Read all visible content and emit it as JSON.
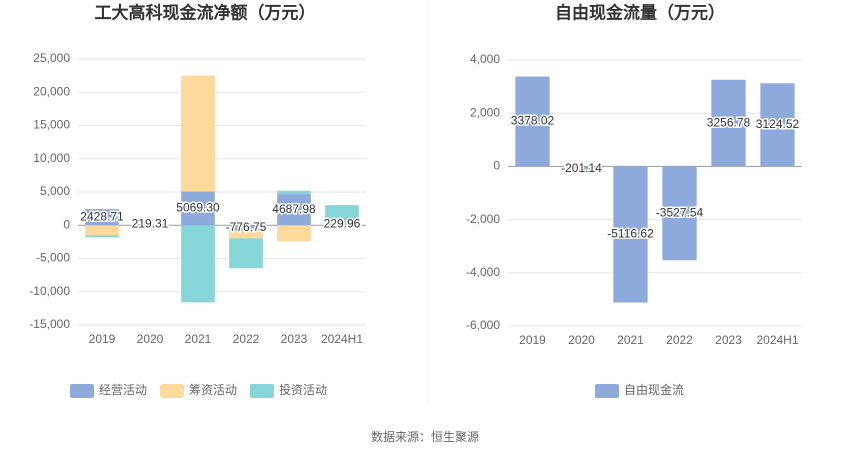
{
  "chart_data": [
    {
      "type": "bar",
      "stacked": true,
      "title": "工大高科现金流净额（万元）",
      "categories": [
        "2019",
        "2020",
        "2021",
        "2022",
        "2023",
        "2024H1"
      ],
      "series": [
        {
          "name": "经营活动",
          "color": "#8eaadc",
          "values": [
            2428.71,
            219.31,
            5069.3,
            -776.75,
            4687.98,
            229.96
          ],
          "value_labels": [
            "2428.71",
            "219.31",
            "5069.30",
            "-776.75",
            "4687.98",
            "229.96"
          ]
        },
        {
          "name": "筹资活动",
          "color": "#fdd99b",
          "values": [
            -1500,
            0,
            17450,
            -1200,
            -2400,
            0
          ]
        },
        {
          "name": "投资活动",
          "color": "#86d5d8",
          "values": [
            -300,
            0,
            -11600,
            -4500,
            500,
            2800
          ]
        }
      ],
      "ylim": [
        -15000,
        25000
      ],
      "yticks": [
        {
          "value": -15000,
          "label": "-15,000"
        },
        {
          "value": -10000,
          "label": "-10,000"
        },
        {
          "value": -5000,
          "label": "-5,000"
        },
        0,
        {
          "value": 5000,
          "label": "5,000"
        },
        {
          "value": 10000,
          "label": "10,000"
        },
        {
          "value": 15000,
          "label": "15,000"
        },
        {
          "value": 20000,
          "label": "20,000"
        },
        {
          "value": 25000,
          "label": "25,000"
        }
      ],
      "grid": true,
      "legend": "bottom"
    },
    {
      "type": "bar",
      "title": "自由现金流量（万元）",
      "categories": [
        "2019",
        "2020",
        "2021",
        "2022",
        "2023",
        "2024H1"
      ],
      "series": [
        {
          "name": "自由现金流",
          "color": "#8eaadc",
          "values": [
            3378.02,
            -201.14,
            -5116.62,
            -3527.54,
            3256.78,
            3124.52
          ],
          "value_labels": [
            "3378.02",
            "-201.14",
            "-5116.62",
            "-3527.54",
            "3256.78",
            "3124.52"
          ]
        }
      ],
      "ylim": [
        -6000,
        4000
      ],
      "yticks": [
        {
          "value": -6000,
          "label": "-6,000"
        },
        {
          "value": -4000,
          "label": "-4,000"
        },
        {
          "value": -2000,
          "label": "-2,000"
        },
        0,
        {
          "value": 2000,
          "label": "2,000"
        },
        {
          "value": 4000,
          "label": "4,000"
        }
      ],
      "grid": true,
      "legend": "bottom"
    }
  ],
  "source": "数据来源：恒生聚源"
}
